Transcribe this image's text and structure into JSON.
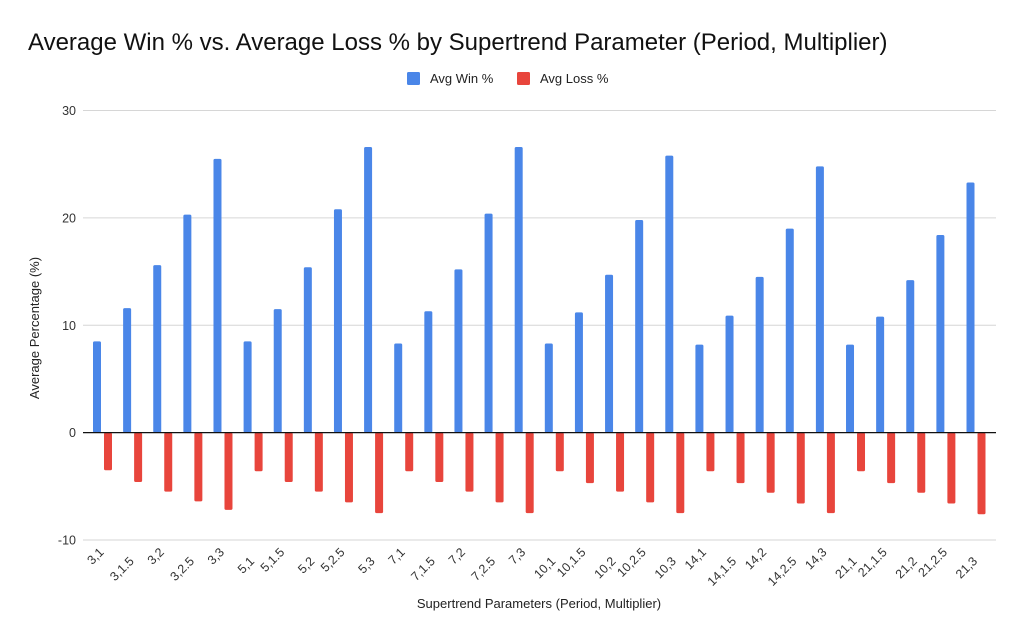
{
  "chart_data": {
    "type": "bar",
    "title": "Average Win % vs. Average Loss % by Supertrend Parameter (Period, Multiplier)",
    "xlabel": "Supertrend Parameters (Period, Multiplier)",
    "ylabel": "Average Percentage (%)",
    "ylim": [
      -10,
      30
    ],
    "yticks": [
      -10,
      0,
      10,
      20,
      30
    ],
    "grid": true,
    "legend_position": "top-center",
    "categories": [
      "3,1",
      "3,1.5",
      "3,2",
      "3,2.5",
      "3,3",
      "5,1",
      "5,1.5",
      "5,2",
      "5,2.5",
      "5,3",
      "7,1",
      "7,1.5",
      "7,2",
      "7,2.5",
      "7,3",
      "10,1",
      "10,1.5",
      "10,2",
      "10,2.5",
      "10,3",
      "14,1",
      "14,1.5",
      "14,2",
      "14,2.5",
      "14,3",
      "21,1",
      "21,1.5",
      "21,2",
      "21,2.5",
      "21,3"
    ],
    "series": [
      {
        "name": "Avg Win %",
        "color": "#4a86e8",
        "values": [
          8.5,
          11.6,
          15.6,
          20.3,
          25.5,
          8.5,
          11.5,
          15.4,
          20.8,
          26.6,
          8.3,
          11.3,
          15.2,
          20.4,
          26.6,
          8.3,
          11.2,
          14.7,
          19.8,
          25.8,
          8.2,
          10.9,
          14.5,
          19.0,
          24.8,
          8.2,
          10.8,
          14.2,
          18.4,
          23.3
        ]
      },
      {
        "name": "Avg Loss %",
        "color": "#e8453c",
        "values": [
          -3.5,
          -4.6,
          -5.5,
          -6.4,
          -7.2,
          -3.6,
          -4.6,
          -5.5,
          -6.5,
          -7.5,
          -3.6,
          -4.6,
          -5.5,
          -6.5,
          -7.5,
          -3.6,
          -4.7,
          -5.5,
          -6.5,
          -7.5,
          -3.6,
          -4.7,
          -5.6,
          -6.6,
          -7.5,
          -3.6,
          -4.7,
          -5.6,
          -6.6,
          -7.6
        ]
      }
    ]
  }
}
